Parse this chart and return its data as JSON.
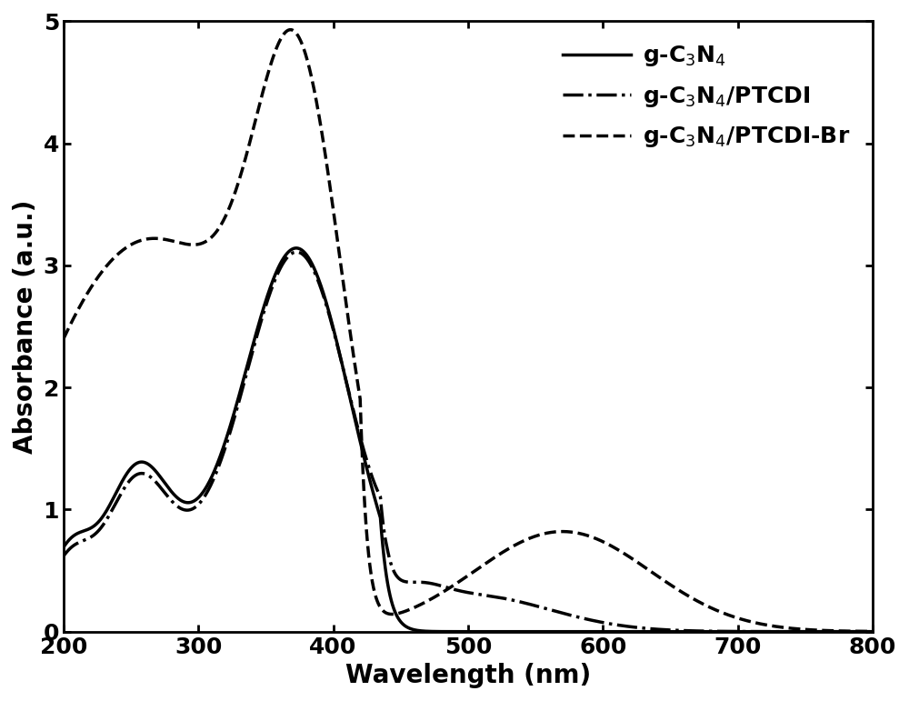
{
  "title": "",
  "xlabel": "Wavelength (nm)",
  "ylabel": "Absorbance (a.u.)",
  "xlim": [
    200,
    800
  ],
  "ylim": [
    0,
    5
  ],
  "xticks": [
    200,
    300,
    400,
    500,
    600,
    700,
    800
  ],
  "yticks": [
    0,
    1,
    2,
    3,
    4,
    5
  ],
  "line_color": "#000000",
  "legend_labels": [
    "g-C$_3$N$_4$",
    "g-C$_3$N$_4$/PTCDI",
    "g-C$_3$N$_4$/PTCDI-Br"
  ],
  "line1_style": "solid",
  "line2_style": "dashdot",
  "line3_style": "dashed",
  "linewidth": 2.5,
  "font_size": 20,
  "tick_font_size": 18,
  "legend_font_size": 18
}
